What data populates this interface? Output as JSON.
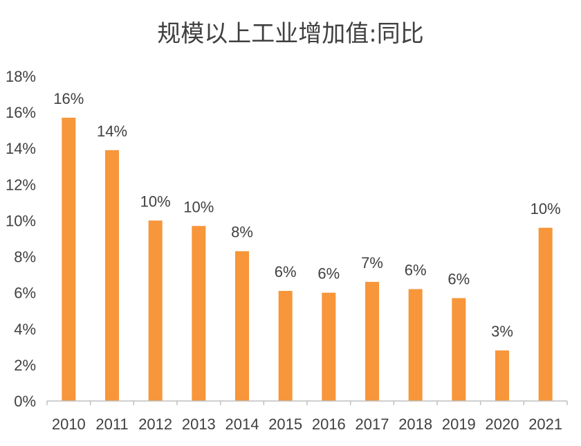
{
  "chart_data": {
    "type": "bar",
    "title": "规模以上工业增加值:同比",
    "xlabel": "",
    "ylabel": "",
    "categories": [
      "2010",
      "2011",
      "2012",
      "2013",
      "2014",
      "2015",
      "2016",
      "2017",
      "2018",
      "2019",
      "2020",
      "2021"
    ],
    "values": [
      15.7,
      13.9,
      10.0,
      9.7,
      8.3,
      6.1,
      6.0,
      6.6,
      6.2,
      5.7,
      2.8,
      9.6
    ],
    "data_labels": [
      "16%",
      "14%",
      "10%",
      "10%",
      "8%",
      "6%",
      "6%",
      "7%",
      "6%",
      "6%",
      "3%",
      "10%"
    ],
    "ylim": [
      0,
      18
    ],
    "y_ticks": [
      "0%",
      "2%",
      "4%",
      "6%",
      "8%",
      "10%",
      "12%",
      "14%",
      "16%",
      "18%"
    ],
    "grid": false,
    "colors": {
      "bar": "#F7963A",
      "axis": "#BFBFBF",
      "text": "#404040"
    }
  }
}
